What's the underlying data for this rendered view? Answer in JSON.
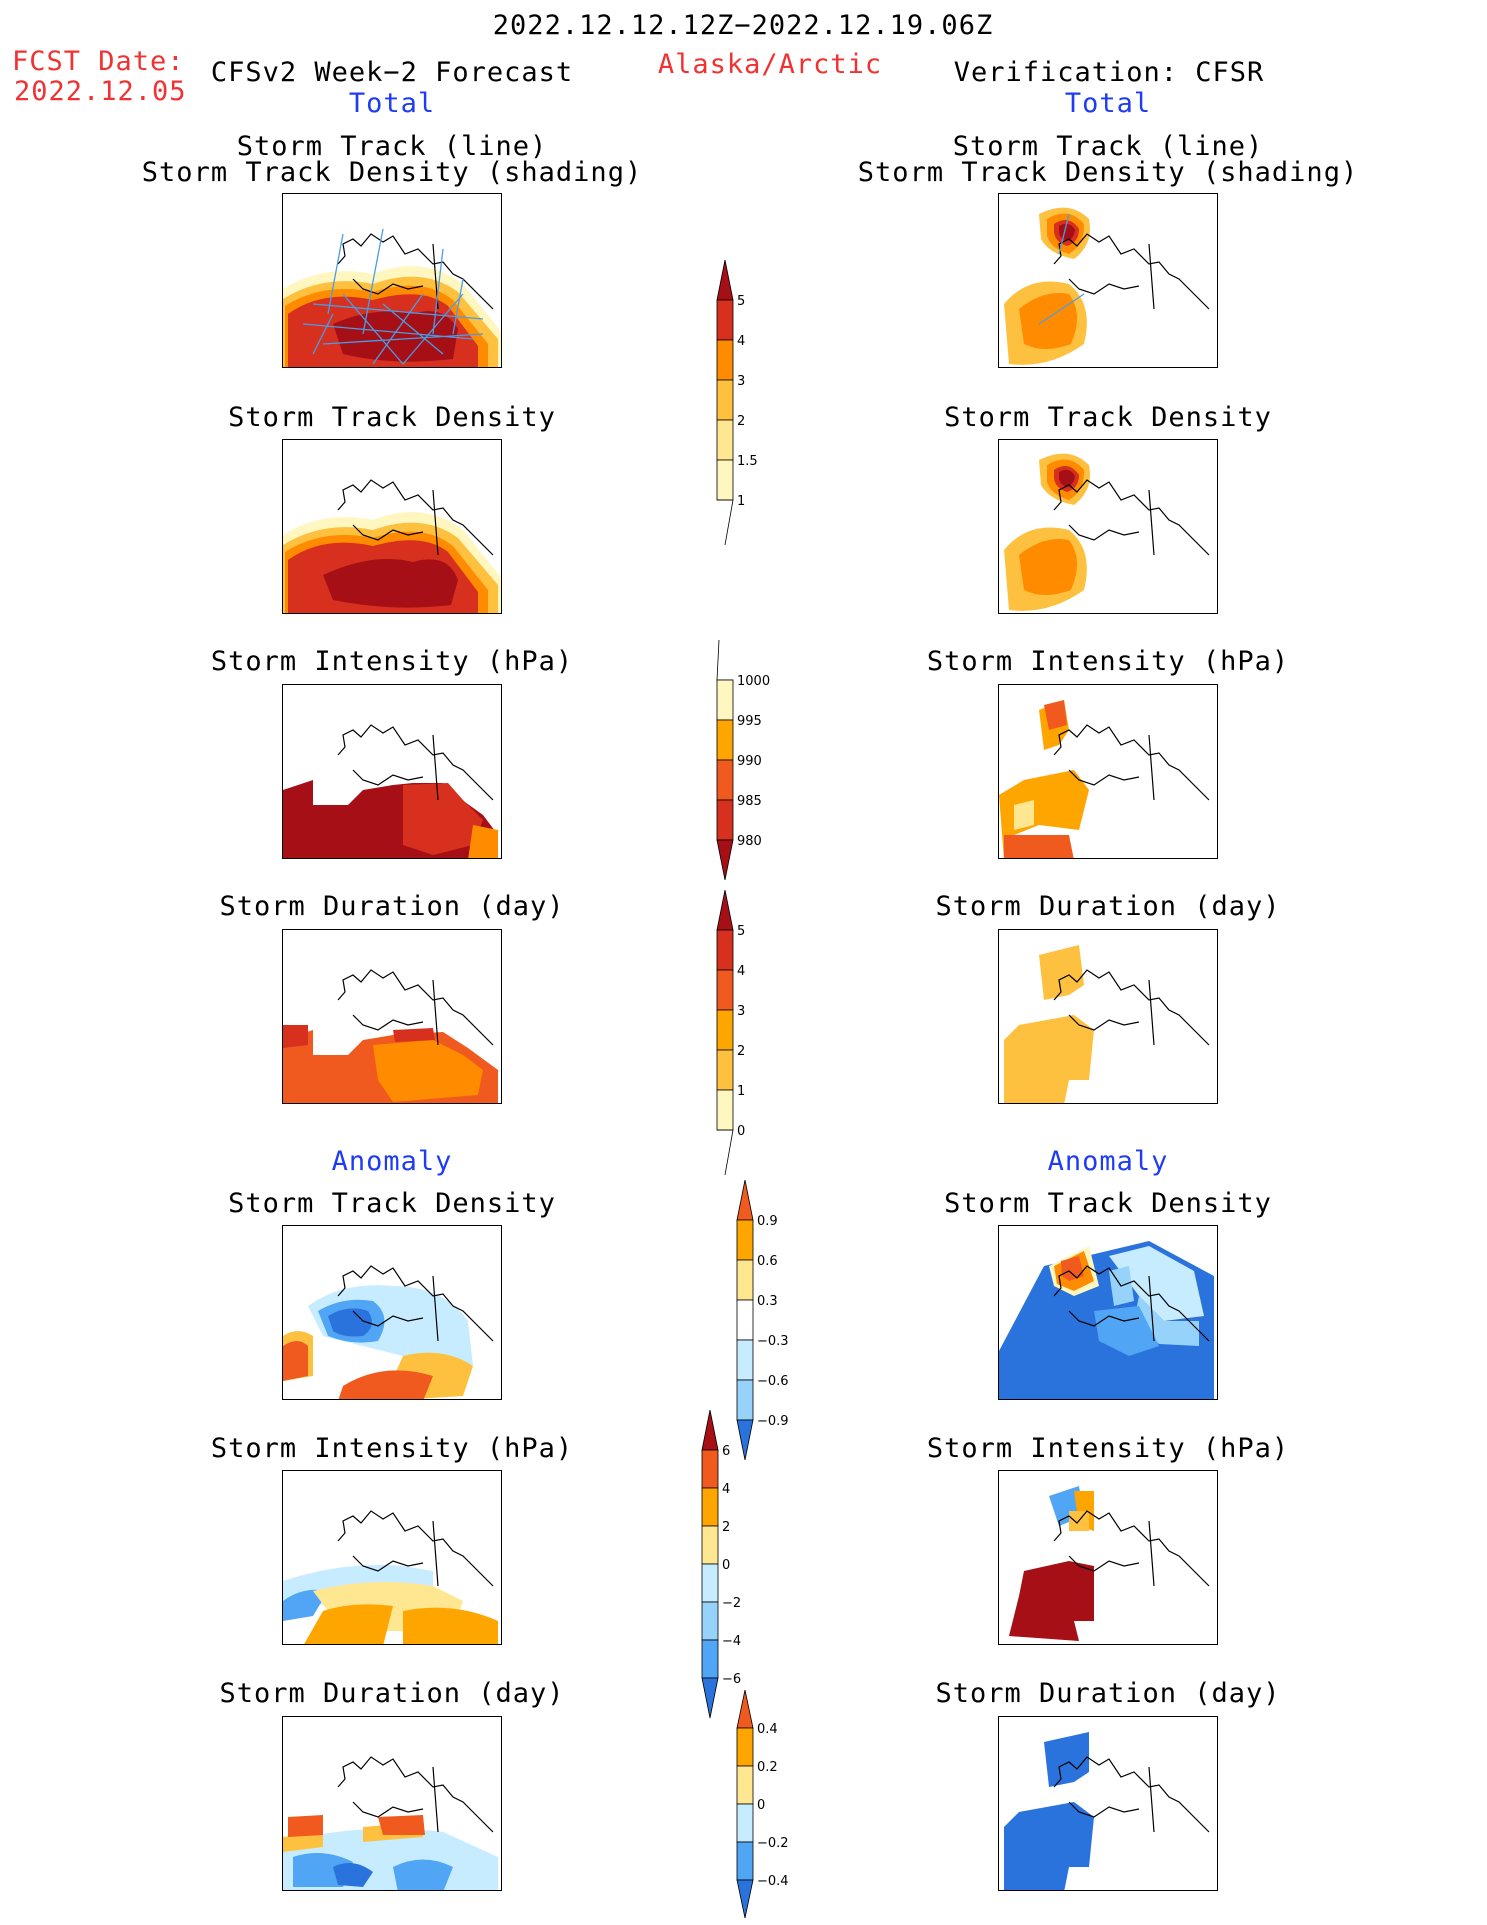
{
  "header": {
    "date_range": "2022.12.12.12Z−2022.12.19.06Z",
    "fcst_label": "FCST Date:",
    "fcst_date": "2022.12.05",
    "left_model": "CFSv2 Week−2 Forecast",
    "region": "Alaska/Arctic",
    "right_model": "Verification: CFSR",
    "total_label": "Total",
    "anomaly_label": "Anomaly"
  },
  "panel_titles": {
    "track_line": "Storm Track (line)",
    "track_shading": "Storm Track Density (shading)",
    "density": "Storm Track Density",
    "intensity": "Storm Intensity (hPa)",
    "duration": "Storm Duration (day)"
  },
  "colors": {
    "dark_red": "#a50f15",
    "red": "#d7301f",
    "red_orange": "#f05a1e",
    "orange": "#ff8c00",
    "light_orange": "#ffa500",
    "amber": "#fdc13f",
    "light_yellow": "#ffe792",
    "pale_yellow": "#fff7bf",
    "pale_blue": "#c7ecff",
    "light_blue": "#96d2fa",
    "mid_blue": "#50a5f5",
    "blue": "#2a72dc",
    "dark_blue": "#1e5ab4",
    "track_line": "#4a9ce8"
  },
  "chart_data": [
    {
      "type": "heatmap",
      "id": "fcst-track",
      "title": "Storm Track (line) / Storm Track Density (shading)",
      "source": "CFSv2 Week-2 Forecast",
      "field": "Total",
      "pattern": "high density (>5) band across Bering Sea and Gulf of Alaska with storm track lines"
    },
    {
      "type": "heatmap",
      "id": "obs-track",
      "title": "Storm Track (line) / Storm Track Density (shading)",
      "source": "Verification: CFSR",
      "field": "Total",
      "pattern": "maximum (>5) over Chukchi Sea, moderate density (2-3) over Bering Sea"
    },
    {
      "type": "colorbar",
      "id": "density-scale",
      "levels": [
        1,
        1.5,
        2,
        3,
        4,
        5
      ],
      "tick_labels": [
        "1",
        "1.5",
        "2",
        "3",
        "4",
        "5"
      ]
    },
    {
      "type": "colorbar",
      "id": "intensity-scale",
      "levels": [
        980,
        985,
        990,
        995,
        1000
      ],
      "tick_labels": [
        "1000",
        "995",
        "990",
        "985",
        "980"
      ]
    },
    {
      "type": "colorbar",
      "id": "duration-scale",
      "levels": [
        0,
        1,
        2,
        3,
        4,
        5
      ],
      "tick_labels": [
        "5",
        "4",
        "3",
        "2",
        "1",
        "0"
      ]
    },
    {
      "type": "colorbar",
      "id": "density-anomaly-scale",
      "levels": [
        -0.9,
        -0.6,
        -0.3,
        0.3,
        0.6,
        0.9
      ],
      "tick_labels": [
        "0.9",
        "0.6",
        "0.3",
        "−0.3",
        "−0.6",
        "−0.9"
      ]
    },
    {
      "type": "colorbar",
      "id": "intensity-anomaly-scale",
      "levels": [
        -6,
        -4,
        -2,
        0,
        2,
        4,
        6
      ],
      "tick_labels": [
        "6",
        "4",
        "2",
        "0",
        "−2",
        "−4",
        "−6"
      ]
    },
    {
      "type": "colorbar",
      "id": "duration-anomaly-scale",
      "levels": [
        -0.4,
        -0.2,
        0,
        0.2,
        0.4
      ],
      "tick_labels": [
        "0.4",
        "0.2",
        "0",
        "−0.2",
        "−0.4"
      ]
    }
  ]
}
